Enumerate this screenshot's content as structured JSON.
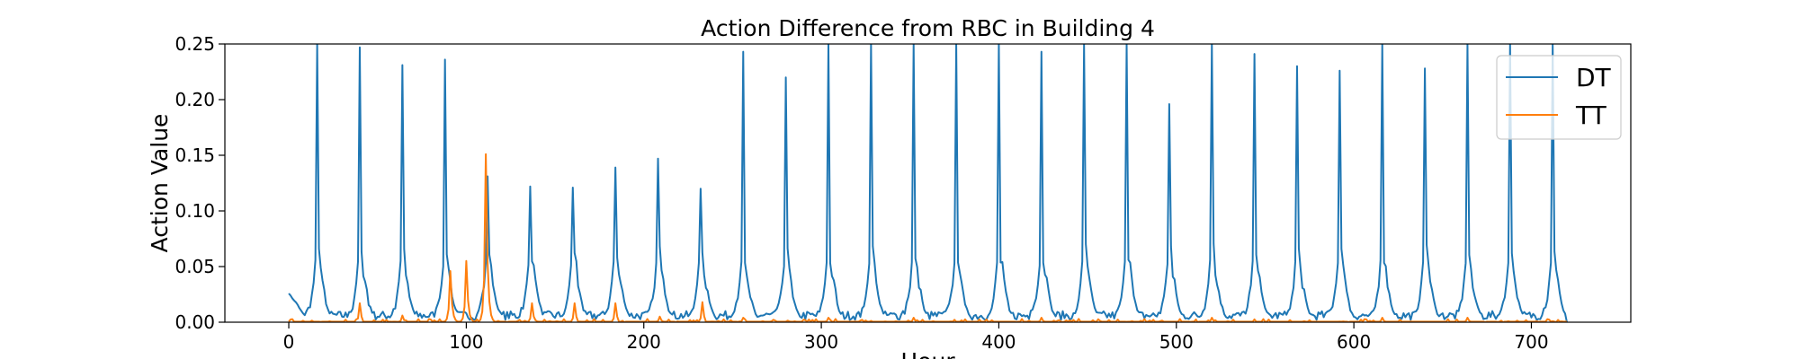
{
  "chart_data": {
    "type": "line",
    "title": "Action Difference from RBC in Building 4",
    "xlabel": "Hour",
    "ylabel": "Action Value",
    "xlim": [
      -36,
      756
    ],
    "ylim": [
      0,
      0.25
    ],
    "xticks": [
      0,
      100,
      200,
      300,
      400,
      500,
      600,
      700
    ],
    "yticks": [
      0.0,
      0.05,
      0.1,
      0.15,
      0.2,
      0.25
    ],
    "xtick_labels": [
      "0",
      "100",
      "200",
      "300",
      "400",
      "500",
      "600",
      "700"
    ],
    "ytick_labels": [
      "0.00",
      "0.05",
      "0.10",
      "0.15",
      "0.20",
      "0.25"
    ],
    "grid": false,
    "legend_position": "top-right",
    "colors": {
      "DT": "#1f77b4",
      "TT": "#ff7f0e"
    },
    "series": [
      {
        "name": "DT",
        "peaks": [
          {
            "x": 16,
            "y": 0.25
          },
          {
            "x": 40,
            "y": 0.247
          },
          {
            "x": 64,
            "y": 0.231
          },
          {
            "x": 88,
            "y": 0.236
          },
          {
            "x": 112,
            "y": 0.131
          },
          {
            "x": 136,
            "y": 0.122
          },
          {
            "x": 160,
            "y": 0.121
          },
          {
            "x": 184,
            "y": 0.139
          },
          {
            "x": 208,
            "y": 0.147
          },
          {
            "x": 232,
            "y": 0.12
          },
          {
            "x": 256,
            "y": 0.243
          },
          {
            "x": 280,
            "y": 0.22
          },
          {
            "x": 304,
            "y": 0.25
          },
          {
            "x": 328,
            "y": 0.25
          },
          {
            "x": 352,
            "y": 0.25
          },
          {
            "x": 376,
            "y": 0.25
          },
          {
            "x": 400,
            "y": 0.25
          },
          {
            "x": 424,
            "y": 0.243
          },
          {
            "x": 448,
            "y": 0.25
          },
          {
            "x": 472,
            "y": 0.25
          },
          {
            "x": 496,
            "y": 0.196
          },
          {
            "x": 520,
            "y": 0.25
          },
          {
            "x": 544,
            "y": 0.241
          },
          {
            "x": 568,
            "y": 0.23
          },
          {
            "x": 592,
            "y": 0.226
          },
          {
            "x": 616,
            "y": 0.25
          },
          {
            "x": 640,
            "y": 0.228
          },
          {
            "x": 664,
            "y": 0.25
          },
          {
            "x": 688,
            "y": 0.25
          },
          {
            "x": 712,
            "y": 0.25
          }
        ],
        "x_range": [
          0,
          720
        ],
        "baseline_start": 0.025
      },
      {
        "name": "TT",
        "peaks": [
          {
            "x": 40,
            "y": 0.017
          },
          {
            "x": 64,
            "y": 0.006
          },
          {
            "x": 91,
            "y": 0.046
          },
          {
            "x": 100,
            "y": 0.055
          },
          {
            "x": 111,
            "y": 0.151
          },
          {
            "x": 137,
            "y": 0.017
          },
          {
            "x": 161,
            "y": 0.017
          },
          {
            "x": 184,
            "y": 0.017
          },
          {
            "x": 209,
            "y": 0.005
          },
          {
            "x": 233,
            "y": 0.018
          },
          {
            "x": 256,
            "y": 0.004
          },
          {
            "x": 304,
            "y": 0.004
          },
          {
            "x": 352,
            "y": 0.004
          },
          {
            "x": 424,
            "y": 0.004
          },
          {
            "x": 520,
            "y": 0.004
          },
          {
            "x": 616,
            "y": 0.004
          },
          {
            "x": 664,
            "y": 0.004
          }
        ],
        "x_range": [
          0,
          720
        ]
      }
    ]
  }
}
